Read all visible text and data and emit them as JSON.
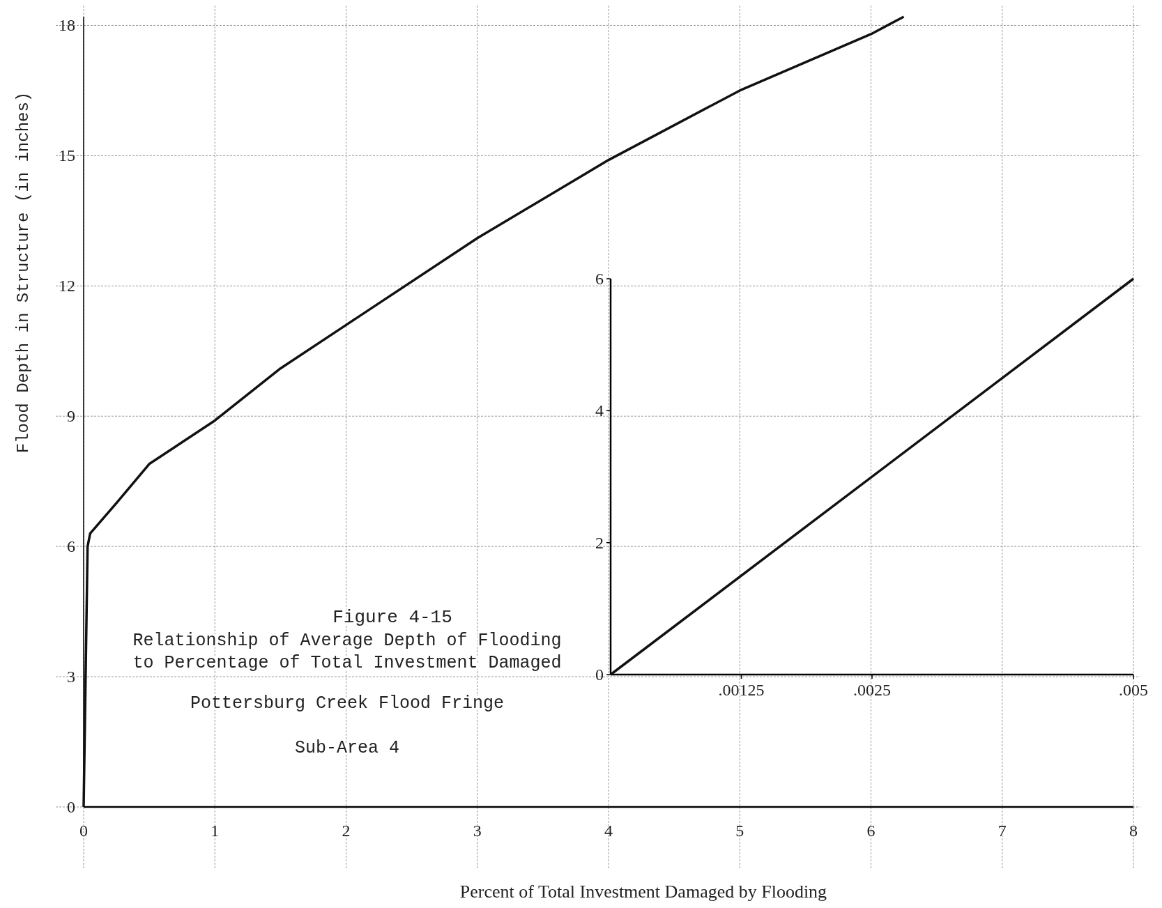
{
  "chart_data": [
    {
      "type": "line",
      "title": "Figure 4-15",
      "subtitle": "Relationship of Average Depth of Flooding to Percentage of Total Investment Damaged",
      "xlabel": "Percent of Total Investment Damaged by Flooding",
      "ylabel": "Flood Depth in Structure (in inches)",
      "annotations": [
        "Pottersburg Creek Flood Fringe",
        "Sub-Area 4"
      ],
      "x": [
        0,
        0.03,
        0.05,
        0.25,
        0.5,
        1,
        1.5,
        2,
        3,
        4,
        5,
        6,
        6.25
      ],
      "series": [
        {
          "color": "#111111",
          "values": [
            0,
            6,
            6.3,
            7.0,
            7.9,
            8.9,
            10.1,
            11.1,
            13.1,
            14.9,
            16.5,
            17.8,
            18.2
          ]
        }
      ],
      "xlim": [
        0,
        8
      ],
      "ylim": [
        0,
        18.2
      ],
      "xticks": [
        0,
        1,
        2,
        3,
        4,
        5,
        6,
        7,
        8
      ],
      "yticks": [
        0,
        3,
        6,
        9,
        12,
        15,
        18
      ],
      "grid": true
    },
    {
      "type": "line",
      "x": [
        0,
        0.005
      ],
      "series": [
        {
          "color": "#111111",
          "values": [
            0,
            6
          ]
        }
      ],
      "xlim": [
        0,
        0.005
      ],
      "ylim": [
        0,
        6
      ],
      "xticks": [
        {
          "value": 0.00125,
          "label": ".00125"
        },
        {
          "value": 0.0025,
          "label": ".0025"
        },
        {
          "value": 0.005,
          "label": ".005"
        }
      ],
      "yticks": [
        0,
        2,
        4,
        6
      ]
    }
  ]
}
